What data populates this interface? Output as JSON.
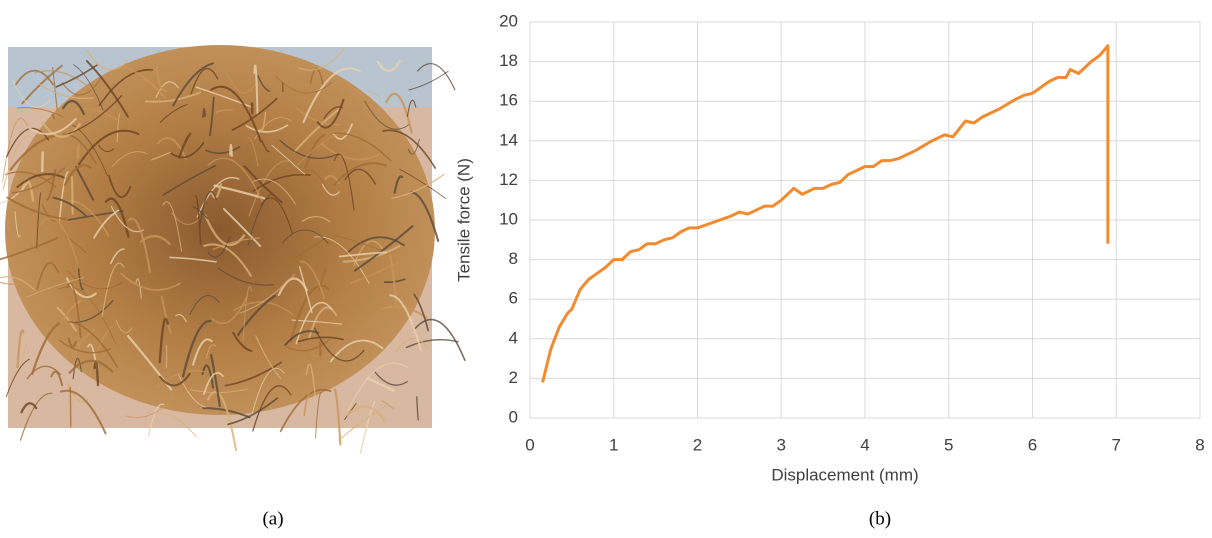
{
  "chart_data": {
    "type": "line",
    "xlabel": "Displacement (mm)",
    "ylabel": "Tensile force (N)",
    "x": [
      0.15,
      0.25,
      0.35,
      0.45,
      0.5,
      0.6,
      0.7,
      0.8,
      0.9,
      1.0,
      1.1,
      1.2,
      1.3,
      1.4,
      1.5,
      1.6,
      1.7,
      1.8,
      1.9,
      2.0,
      2.2,
      2.4,
      2.5,
      2.6,
      2.8,
      2.9,
      3.0,
      3.15,
      3.25,
      3.4,
      3.5,
      3.6,
      3.7,
      3.8,
      3.9,
      4.0,
      4.1,
      4.2,
      4.3,
      4.4,
      4.6,
      4.8,
      4.95,
      5.05,
      5.2,
      5.3,
      5.4,
      5.6,
      5.8,
      5.9,
      6.0,
      6.2,
      6.3,
      6.4,
      6.45,
      6.55,
      6.7,
      6.8,
      6.9,
      6.9
    ],
    "series": [
      {
        "color": "#f28a2e",
        "values": [
          1.8,
          3.5,
          4.6,
          5.3,
          5.5,
          6.5,
          7.0,
          7.3,
          7.6,
          8.0,
          8.0,
          8.4,
          8.5,
          8.8,
          8.8,
          9.0,
          9.1,
          9.4,
          9.6,
          9.6,
          9.9,
          10.2,
          10.4,
          10.3,
          10.7,
          10.7,
          11.0,
          11.6,
          11.3,
          11.6,
          11.6,
          11.8,
          11.9,
          12.3,
          12.5,
          12.7,
          12.7,
          13.0,
          13.0,
          13.1,
          13.5,
          14.0,
          14.3,
          14.2,
          15.0,
          14.9,
          15.2,
          15.6,
          16.1,
          16.3,
          16.4,
          17.0,
          17.2,
          17.2,
          17.6,
          17.4,
          18.0,
          18.3,
          18.8,
          8.8
        ]
      }
    ],
    "xlim": [
      0,
      8
    ],
    "xticks": [
      0,
      1,
      2,
      3,
      4,
      5,
      6,
      7,
      8
    ],
    "ylim": [
      0,
      20
    ],
    "yticks": [
      0,
      2,
      4,
      6,
      8,
      10,
      12,
      14,
      16,
      18,
      20
    ],
    "grid": true
  },
  "captions": [
    "(a)",
    "(b)"
  ]
}
